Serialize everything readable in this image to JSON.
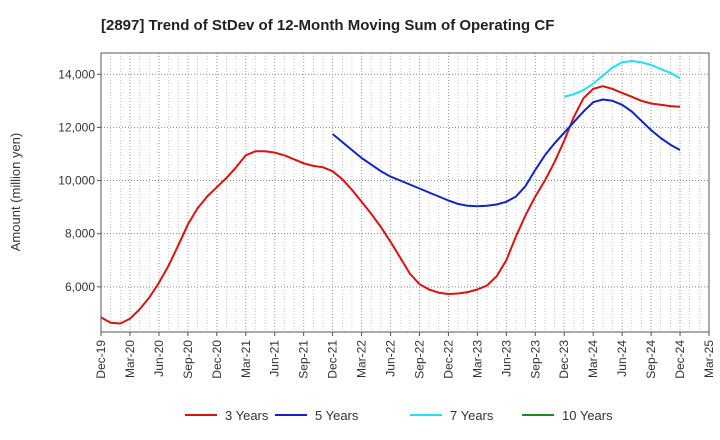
{
  "chart_data": {
    "type": "line",
    "title": "[2897]  Trend of StDev of 12-Month Moving Sum of Operating CF",
    "xlabel": "",
    "ylabel": "Amount (million yen)",
    "ylim": [
      4300,
      14800
    ],
    "yticks": [
      6000,
      8000,
      10000,
      12000,
      14000
    ],
    "ytick_labels": [
      "6,000",
      "8,000",
      "10,000",
      "12,000",
      "14,000"
    ],
    "xlim": [
      "2019-12",
      "2025-03"
    ],
    "xticks": [
      "2019-12",
      "2020-03",
      "2020-06",
      "2020-09",
      "2020-12",
      "2021-03",
      "2021-06",
      "2021-09",
      "2021-12",
      "2022-03",
      "2022-06",
      "2022-09",
      "2022-12",
      "2023-03",
      "2023-06",
      "2023-09",
      "2023-12",
      "2024-03",
      "2024-06",
      "2024-09",
      "2024-12",
      "2025-03"
    ],
    "xtick_labels": [
      "Dec-19",
      "Mar-20",
      "Jun-20",
      "Sep-20",
      "Dec-20",
      "Mar-21",
      "Jun-21",
      "Sep-21",
      "Dec-21",
      "Mar-22",
      "Jun-22",
      "Sep-22",
      "Dec-22",
      "Mar-23",
      "Jun-23",
      "Sep-23",
      "Dec-23",
      "Mar-24",
      "Jun-24",
      "Sep-24",
      "Dec-24",
      "Mar-25"
    ],
    "grid": true,
    "legend_position": "bottom",
    "series": [
      {
        "name": "3 Years",
        "color": "#dd1111",
        "x": [
          "2019-12",
          "2020-01",
          "2020-02",
          "2020-03",
          "2020-04",
          "2020-05",
          "2020-06",
          "2020-07",
          "2020-08",
          "2020-09",
          "2020-10",
          "2020-11",
          "2020-12",
          "2021-01",
          "2021-02",
          "2021-03",
          "2021-04",
          "2021-05",
          "2021-06",
          "2021-07",
          "2021-08",
          "2021-09",
          "2021-10",
          "2021-11",
          "2021-12",
          "2022-01",
          "2022-02",
          "2022-03",
          "2022-04",
          "2022-05",
          "2022-06",
          "2022-07",
          "2022-08",
          "2022-09",
          "2022-10",
          "2022-11",
          "2022-12",
          "2023-01",
          "2023-02",
          "2023-03",
          "2023-04",
          "2023-05",
          "2023-06",
          "2023-07",
          "2023-08",
          "2023-09",
          "2023-10",
          "2023-11",
          "2023-12",
          "2024-01",
          "2024-02",
          "2024-03",
          "2024-04",
          "2024-05",
          "2024-06",
          "2024-07",
          "2024-08",
          "2024-09",
          "2024-10",
          "2024-11",
          "2024-12"
        ],
        "values": [
          4850,
          4650,
          4620,
          4800,
          5150,
          5600,
          6150,
          6800,
          7550,
          8350,
          8950,
          9400,
          9750,
          10100,
          10500,
          10950,
          11100,
          11100,
          11050,
          10950,
          10800,
          10650,
          10550,
          10500,
          10350,
          10050,
          9650,
          9200,
          8750,
          8250,
          7700,
          7100,
          6500,
          6100,
          5900,
          5780,
          5730,
          5750,
          5800,
          5900,
          6050,
          6400,
          7000,
          7900,
          8700,
          9400,
          10000,
          10700,
          11500,
          12400,
          13100,
          13450,
          13550,
          13450,
          13300,
          13150,
          13000,
          12900,
          12850,
          12800,
          12780
        ],
        "values_note": ""
      },
      {
        "name": "5 Years",
        "color": "#1122cc",
        "x": [
          "2021-12",
          "2022-01",
          "2022-02",
          "2022-03",
          "2022-04",
          "2022-05",
          "2022-06",
          "2022-07",
          "2022-08",
          "2022-09",
          "2022-10",
          "2022-11",
          "2022-12",
          "2023-01",
          "2023-02",
          "2023-03",
          "2023-04",
          "2023-05",
          "2023-06",
          "2023-07",
          "2023-08",
          "2023-09",
          "2023-10",
          "2023-11",
          "2023-12",
          "2024-01",
          "2024-02",
          "2024-03",
          "2024-04",
          "2024-05",
          "2024-06",
          "2024-07",
          "2024-08",
          "2024-09",
          "2024-10",
          "2024-11",
          "2024-12"
        ],
        "values": [
          11750,
          11450,
          11150,
          10850,
          10600,
          10350,
          10150,
          10000,
          9850,
          9700,
          9550,
          9400,
          9250,
          9120,
          9050,
          9030,
          9050,
          9100,
          9200,
          9400,
          9800,
          10400,
          10950,
          11400,
          11800,
          12200,
          12600,
          12950,
          13050,
          13000,
          12850,
          12600,
          12250,
          11900,
          11600,
          11350,
          11150
        ]
      },
      {
        "name": "7 Years",
        "color": "#22e0ee",
        "x": [
          "2023-12",
          "2024-01",
          "2024-02",
          "2024-03",
          "2024-04",
          "2024-05",
          "2024-06",
          "2024-07",
          "2024-08",
          "2024-09",
          "2024-10",
          "2024-11",
          "2024-12"
        ],
        "values": [
          13150,
          13250,
          13400,
          13650,
          13950,
          14250,
          14450,
          14500,
          14450,
          14350,
          14200,
          14050,
          13850
        ]
      },
      {
        "name": "10 Years",
        "color": "#228822",
        "x": [],
        "values": []
      }
    ]
  }
}
